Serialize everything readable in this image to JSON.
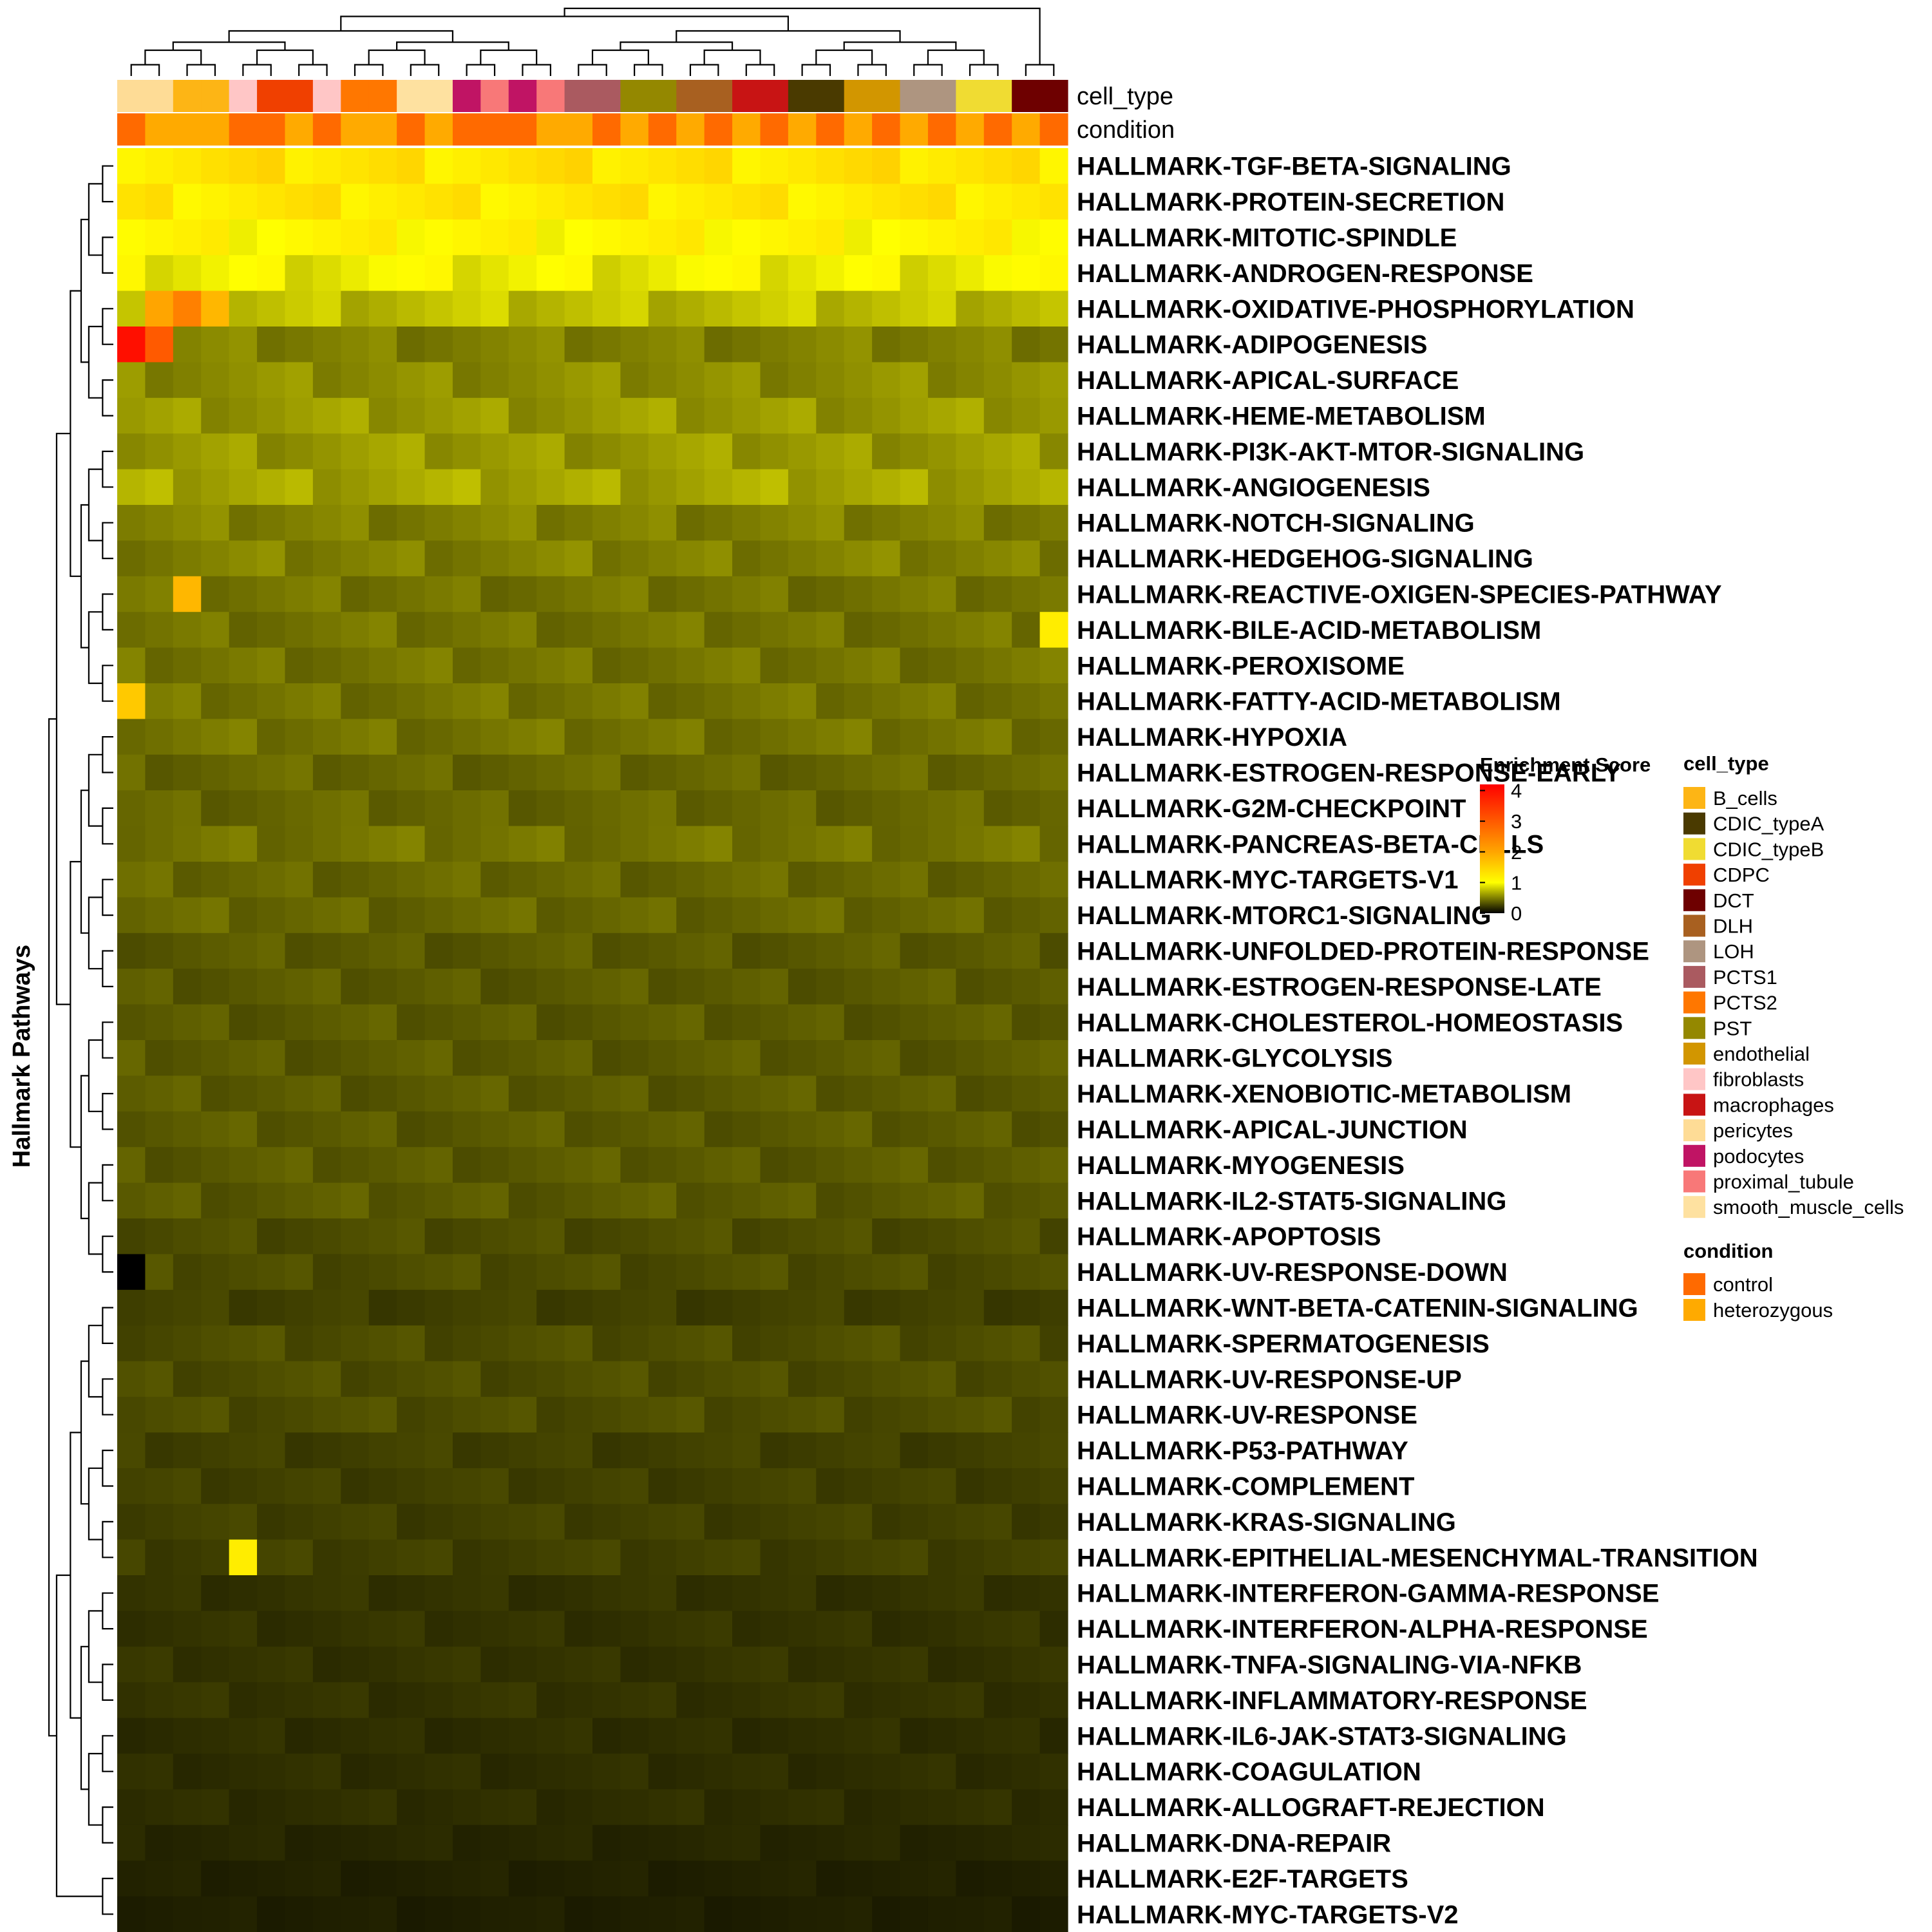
{
  "chart_data": {
    "type": "heatmap",
    "ylabel": "Hallmark Pathways",
    "annotation_labels": [
      "cell_type",
      "condition"
    ],
    "column_cell_type": [
      "pericytes",
      "pericytes",
      "B_cells",
      "B_cells",
      "fibroblasts",
      "CDPC",
      "CDPC",
      "fibroblasts",
      "PCTS2",
      "PCTS2",
      "smooth_muscle_cells",
      "smooth_muscle_cells",
      "podocytes",
      "proximal_tubule",
      "podocytes",
      "proximal_tubule",
      "PCTS1",
      "PCTS1",
      "PST",
      "PST",
      "DLH",
      "DLH",
      "macrophages",
      "macrophages",
      "CDIC_typeA",
      "CDIC_typeA",
      "endothelial",
      "endothelial",
      "LOH",
      "LOH",
      "CDIC_typeB",
      "CDIC_typeB",
      "DCT",
      "DCT"
    ],
    "column_condition": [
      "control",
      "heterozygous",
      "heterozygous",
      "heterozygous",
      "control",
      "control",
      "heterozygous",
      "control",
      "heterozygous",
      "heterozygous",
      "control",
      "heterozygous",
      "control",
      "control",
      "control",
      "heterozygous",
      "heterozygous",
      "control",
      "heterozygous",
      "control",
      "heterozygous",
      "control",
      "heterozygous",
      "control",
      "heterozygous",
      "control",
      "heterozygous",
      "control",
      "heterozygous",
      "control",
      "heterozygous",
      "control",
      "heterozygous",
      "control"
    ],
    "rows": [
      "HALLMARK-TGF-BETA-SIGNALING",
      "HALLMARK-PROTEIN-SECRETION",
      "HALLMARK-MITOTIC-SPINDLE",
      "HALLMARK-ANDROGEN-RESPONSE",
      "HALLMARK-OXIDATIVE-PHOSPHORYLATION",
      "HALLMARK-ADIPOGENESIS",
      "HALLMARK-APICAL-SURFACE",
      "HALLMARK-HEME-METABOLISM",
      "HALLMARK-PI3K-AKT-MTOR-SIGNALING",
      "HALLMARK-ANGIOGENESIS",
      "HALLMARK-NOTCH-SIGNALING",
      "HALLMARK-HEDGEHOG-SIGNALING",
      "HALLMARK-REACTIVE-OXIGEN-SPECIES-PATHWAY",
      "HALLMARK-BILE-ACID-METABOLISM",
      "HALLMARK-PEROXISOME",
      "HALLMARK-FATTY-ACID-METABOLISM",
      "HALLMARK-HYPOXIA",
      "HALLMARK-ESTROGEN-RESPONSE-EARLY",
      "HALLMARK-G2M-CHECKPOINT",
      "HALLMARK-PANCREAS-BETA-CELLS",
      "HALLMARK-MYC-TARGETS-V1",
      "HALLMARK-MTORC1-SIGNALING",
      "HALLMARK-UNFOLDED-PROTEIN-RESPONSE",
      "HALLMARK-ESTROGEN-RESPONSE-LATE",
      "HALLMARK-CHOLESTEROL-HOMEOSTASIS",
      "HALLMARK-GLYCOLYSIS",
      "HALLMARK-XENOBIOTIC-METABOLISM",
      "HALLMARK-APICAL-JUNCTION",
      "HALLMARK-MYOGENESIS",
      "HALLMARK-IL2-STAT5-SIGNALING",
      "HALLMARK-APOPTOSIS",
      "HALLMARK-UV-RESPONSE-DOWN",
      "HALLMARK-WNT-BETA-CATENIN-SIGNALING",
      "HALLMARK-SPERMATOGENESIS",
      "HALLMARK-UV-RESPONSE-UP",
      "HALLMARK-UV-RESPONSE",
      "HALLMARK-P53-PATHWAY",
      "HALLMARK-COMPLEMENT",
      "HALLMARK-KRAS-SIGNALING",
      "HALLMARK-EPITHELIAL-MESENCHYMAL-TRANSITION",
      "HALLMARK-INTERFERON-GAMMA-RESPONSE",
      "HALLMARK-INTERFERON-ALPHA-RESPONSE",
      "HALLMARK-TNFA-SIGNALING-VIA-NFKB",
      "HALLMARK-INFLAMMATORY-RESPONSE",
      "HALLMARK-IL6-JAK-STAT3-SIGNALING",
      "HALLMARK-COAGULATION",
      "HALLMARK-ALLOGRAFT-REJECTION",
      "HALLMARK-DNA-REPAIR",
      "HALLMARK-E2F-TARGETS",
      "HALLMARK-MYC-TARGETS-V2"
    ],
    "row_means": [
      1.3,
      1.25,
      1.1,
      0.95,
      0.75,
      0.5,
      0.55,
      0.6,
      0.6,
      0.65,
      0.5,
      0.5,
      0.45,
      0.45,
      0.45,
      0.45,
      0.45,
      0.4,
      0.4,
      0.45,
      0.4,
      0.4,
      0.35,
      0.35,
      0.35,
      0.35,
      0.35,
      0.35,
      0.35,
      0.35,
      0.3,
      0.3,
      0.25,
      0.3,
      0.3,
      0.3,
      0.25,
      0.25,
      0.25,
      0.25,
      0.2,
      0.2,
      0.2,
      0.2,
      0.18,
      0.18,
      0.18,
      0.15,
      0.13,
      0.12
    ],
    "highlights": [
      {
        "row": 5,
        "col": 0,
        "value": 4.0
      },
      {
        "row": 5,
        "col": 1,
        "value": 3.0
      },
      {
        "row": 4,
        "col": 2,
        "value": 2.5
      },
      {
        "row": 4,
        "col": 1,
        "value": 2.0
      },
      {
        "row": 4,
        "col": 3,
        "value": 1.8
      },
      {
        "row": 12,
        "col": 2,
        "value": 1.8
      },
      {
        "row": 15,
        "col": 0,
        "value": 1.6
      },
      {
        "row": 31,
        "col": 0,
        "value": 0.0
      },
      {
        "row": 13,
        "col": 33,
        "value": 1.2
      },
      {
        "row": 39,
        "col": 4,
        "value": 1.2
      }
    ],
    "color_scale": {
      "title": "Enrichment Score",
      "ticks": [
        0,
        1,
        2,
        3,
        4
      ],
      "domain": [
        0,
        4.2
      ],
      "stops": [
        {
          "value": 0.0,
          "color": "#000000"
        },
        {
          "value": 1.0,
          "color": "#ffff00"
        },
        {
          "value": 2.0,
          "color": "#ffa500"
        },
        {
          "value": 4.2,
          "color": "#ff0000"
        }
      ]
    },
    "legend_cell_type": {
      "title": "cell_type",
      "items": [
        {
          "label": "B_cells",
          "color": "#FDB515"
        },
        {
          "label": "CDIC_typeA",
          "color": "#4A3A00"
        },
        {
          "label": "CDIC_typeB",
          "color": "#F0DC32"
        },
        {
          "label": "CDPC",
          "color": "#F04000"
        },
        {
          "label": "DCT",
          "color": "#6E0000"
        },
        {
          "label": "DLH",
          "color": "#A86020"
        },
        {
          "label": "LOH",
          "color": "#AE9580"
        },
        {
          "label": "PCTS1",
          "color": "#AA5A60"
        },
        {
          "label": "PCTS2",
          "color": "#FF7700"
        },
        {
          "label": "PST",
          "color": "#948800"
        },
        {
          "label": "endothelial",
          "color": "#D29600"
        },
        {
          "label": "fibroblasts",
          "color": "#FFC6C6"
        },
        {
          "label": "macrophages",
          "color": "#C81414"
        },
        {
          "label": "pericytes",
          "color": "#FEDC96"
        },
        {
          "label": "podocytes",
          "color": "#C01464"
        },
        {
          "label": "proximal_tubule",
          "color": "#F87878"
        },
        {
          "label": "smooth_muscle_cells",
          "color": "#FEE1A0"
        }
      ]
    },
    "legend_condition": {
      "title": "condition",
      "items": [
        {
          "label": "control",
          "color": "#FF6A00"
        },
        {
          "label": "heterozygous",
          "color": "#FFAA00"
        }
      ]
    }
  }
}
